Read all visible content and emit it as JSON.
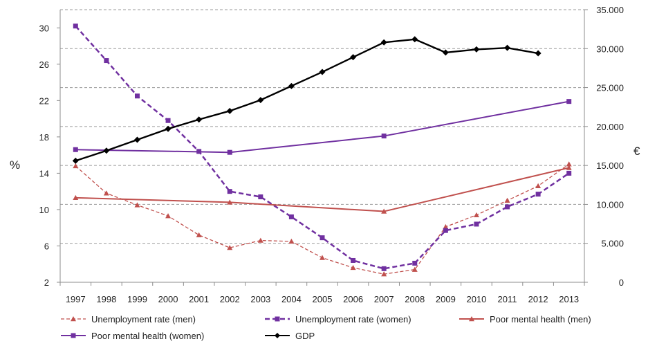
{
  "chart_data": {
    "type": "line",
    "title": "",
    "xlabel": "",
    "ylabel_left": "%",
    "ylabel_right": "€",
    "categories": [
      "1997",
      "1998",
      "1999",
      "2000",
      "2001",
      "2002",
      "2003",
      "2004",
      "2005",
      "2006",
      "2007",
      "2008",
      "2009",
      "2010",
      "2011",
      "2012",
      "2013"
    ],
    "left_axis": {
      "ylim": [
        2,
        32
      ],
      "ticks": [
        "2",
        "6",
        "10",
        "14",
        "18",
        "22",
        "26",
        "30"
      ]
    },
    "right_axis": {
      "ylim": [
        0,
        35000
      ],
      "ticks": [
        "0",
        "5.000",
        "10.000",
        "15.000",
        "20.000",
        "25.000",
        "30.000",
        "35.000"
      ]
    },
    "grid": "horizontal dashed",
    "legend_position": "bottom",
    "series": [
      {
        "name": "Unemployment rate (men)",
        "axis": "left",
        "color": "#c0504d",
        "line_style": "dashed",
        "marker": "triangle",
        "x": [
          "1997",
          "1998",
          "1999",
          "2000",
          "2001",
          "2002",
          "2003",
          "2004",
          "2005",
          "2006",
          "2007",
          "2008",
          "2009",
          "2010",
          "2011",
          "2012",
          "2013"
        ],
        "values": [
          14.8,
          11.8,
          10.5,
          9.3,
          7.2,
          5.8,
          6.6,
          6.5,
          4.7,
          3.6,
          2.9,
          3.4,
          8.1,
          9.4,
          11.0,
          12.6,
          15.0
        ]
      },
      {
        "name": "Unemployment rate (women)",
        "axis": "left",
        "color": "#7030a0",
        "line_style": "dashed",
        "marker": "square",
        "x": [
          "1997",
          "1998",
          "1999",
          "2000",
          "2001",
          "2002",
          "2003",
          "2004",
          "2005",
          "2006",
          "2007",
          "2008",
          "2009",
          "2010",
          "2011",
          "2012",
          "2013"
        ],
        "values": [
          30.2,
          26.4,
          22.5,
          19.8,
          16.4,
          12.0,
          11.4,
          9.2,
          6.9,
          4.4,
          3.5,
          4.1,
          7.7,
          8.4,
          10.3,
          11.7,
          14.0
        ]
      },
      {
        "name": "Poor mental health (men)",
        "axis": "left",
        "color": "#c0504d",
        "line_style": "solid",
        "marker": "triangle",
        "x": [
          "1997",
          "2002",
          "2007",
          "2013"
        ],
        "values": [
          11.3,
          10.8,
          9.8,
          14.6
        ]
      },
      {
        "name": "Poor mental health (women)",
        "axis": "left",
        "color": "#7030a0",
        "line_style": "solid",
        "marker": "square",
        "x": [
          "1997",
          "2002",
          "2007",
          "2013"
        ],
        "values": [
          16.6,
          16.3,
          18.1,
          21.9
        ]
      },
      {
        "name": "GDP",
        "axis": "right",
        "color": "#000000",
        "line_style": "solid",
        "marker": "diamond",
        "x": [
          "1997",
          "1998",
          "1999",
          "2000",
          "2001",
          "2002",
          "2003",
          "2004",
          "2005",
          "2006",
          "2007",
          "2008",
          "2009",
          "2010",
          "2011",
          "2012"
        ],
        "values": [
          15600,
          16900,
          18300,
          19700,
          20900,
          22000,
          23400,
          25200,
          27000,
          28900,
          30800,
          31200,
          29500,
          29900,
          30100,
          29400
        ]
      }
    ]
  }
}
